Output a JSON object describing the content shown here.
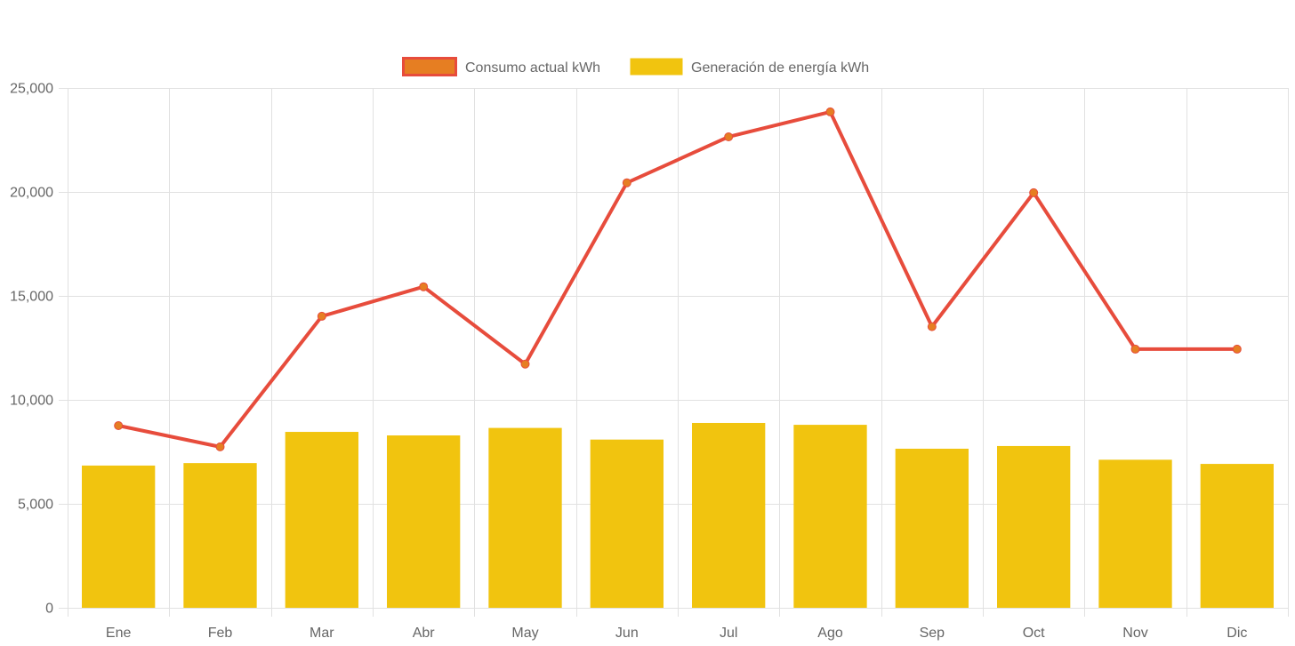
{
  "chart_data": {
    "type": "bar",
    "title": "",
    "xlabel": "",
    "ylabel": "",
    "categories": [
      "Ene",
      "Feb",
      "Mar",
      "Abr",
      "May",
      "Jun",
      "Jul",
      "Ago",
      "Sep",
      "Oct",
      "Nov",
      "Dic"
    ],
    "ylim": [
      0,
      25000
    ],
    "yticks": [
      0,
      5000,
      10000,
      15000,
      20000,
      25000
    ],
    "ytick_labels": [
      "0",
      "5,000",
      "10,000",
      "15,000",
      "20,000",
      "25,000"
    ],
    "grid": true,
    "legend_position": "top-center",
    "series": [
      {
        "name": "Consumo actual kWh",
        "type": "line",
        "color": "#e74c3c",
        "point_color": "#e67e22",
        "values": [
          8760,
          7740,
          14020,
          15440,
          11720,
          20440,
          22650,
          23850,
          13520,
          19960,
          12440,
          12440
        ]
      },
      {
        "name": "Generación de energía kWh",
        "type": "bar",
        "color": "#f1c40f",
        "values": [
          6840,
          6960,
          8460,
          8290,
          8650,
          8090,
          8890,
          8800,
          7650,
          7780,
          7120,
          6920
        ]
      }
    ]
  }
}
